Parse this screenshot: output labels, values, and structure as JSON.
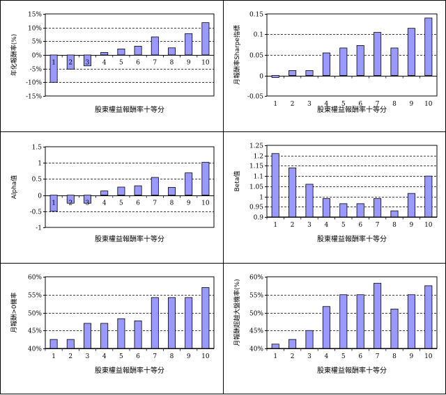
{
  "chart_data": [
    {
      "type": "bar",
      "categories": [
        "1",
        "2",
        "3",
        "4",
        "5",
        "6",
        "7",
        "8",
        "9",
        "10"
      ],
      "values": [
        -10.0,
        -5.2,
        -4.0,
        0.9,
        2.2,
        3.2,
        6.6,
        2.6,
        7.8,
        11.8
      ],
      "ylim": [
        -15,
        15
      ],
      "yticks": [
        "-15%",
        "-10%",
        "-5%",
        "0%",
        "5%",
        "10%",
        "15%"
      ],
      "yticks_values": [
        -15,
        -10,
        -5,
        0,
        5,
        10,
        15
      ],
      "xlabel": "股東權益報酬率十等分",
      "ylabel": "年化報酬率(%)",
      "grid": "dashed",
      "bar_color": "#9999ff"
    },
    {
      "type": "bar",
      "categories": [
        "1",
        "2",
        "3",
        "4",
        "5",
        "6",
        "7",
        "8",
        "9",
        "10"
      ],
      "values": [
        -0.005,
        0.012,
        0.012,
        0.055,
        0.067,
        0.073,
        0.105,
        0.067,
        0.115,
        0.14
      ],
      "ylim": [
        -0.05,
        0.15
      ],
      "yticks": [
        "-0.05",
        "0",
        "0.05",
        "0.1",
        "0.15"
      ],
      "yticks_values": [
        -0.05,
        0,
        0.05,
        0.1,
        0.15
      ],
      "xlabel": "股東權益報酬率十等分",
      "ylabel": "月報酬率Sharpe指標",
      "grid": "dashed",
      "bar_color": "#9999ff"
    },
    {
      "type": "bar",
      "categories": [
        "1",
        "2",
        "3",
        "4",
        "5",
        "6",
        "7",
        "8",
        "9",
        "10"
      ],
      "values": [
        -0.5,
        -0.25,
        -0.25,
        0.13,
        0.25,
        0.29,
        0.55,
        0.24,
        0.69,
        1.02
      ],
      "ylim": [
        -1,
        1.5
      ],
      "yticks": [
        "-1",
        "-0.5",
        "0",
        "0.5",
        "1",
        "1.5"
      ],
      "yticks_values": [
        -1,
        -0.5,
        0,
        0.5,
        1,
        1.5
      ],
      "xlabel": "股東權益報酬率十等分",
      "ylabel": "Alpha值",
      "grid": "dashed",
      "bar_color": "#9999ff"
    },
    {
      "type": "bar",
      "categories": [
        "1",
        "2",
        "3",
        "4",
        "5",
        "6",
        "7",
        "8",
        "9",
        "10"
      ],
      "values": [
        1.21,
        1.14,
        1.06,
        0.99,
        0.965,
        0.965,
        0.99,
        0.93,
        1.015,
        1.1
      ],
      "ylim": [
        0.9,
        1.25
      ],
      "yticks": [
        "0.9",
        "0.95",
        "1",
        "1.05",
        "1.1",
        "1.15",
        "1.2",
        "1.25"
      ],
      "yticks_values": [
        0.9,
        0.95,
        1,
        1.05,
        1.1,
        1.15,
        1.2,
        1.25
      ],
      "xlabel": "股東權益報酬率十等分",
      "ylabel": "Beta值",
      "grid": "dashed",
      "bar_color": "#9999ff"
    },
    {
      "type": "bar",
      "categories": [
        "1",
        "2",
        "3",
        "4",
        "5",
        "6",
        "7",
        "8",
        "9",
        "10"
      ],
      "values": [
        42.5,
        42.5,
        47.0,
        47.0,
        48.3,
        47.7,
        54.2,
        54.2,
        54.2,
        57.0
      ],
      "ylim": [
        40,
        60
      ],
      "yticks": [
        "40%",
        "45%",
        "50%",
        "55%",
        "60%"
      ],
      "yticks_values": [
        40,
        45,
        50,
        55,
        60
      ],
      "xlabel": "股東權益報酬率十等分",
      "ylabel": "月報酬>0機率",
      "grid": "dashed",
      "bar_color": "#9999ff"
    },
    {
      "type": "bar",
      "categories": [
        "1",
        "2",
        "3",
        "4",
        "5",
        "6",
        "7",
        "8",
        "9",
        "10"
      ],
      "values": [
        41.2,
        42.5,
        45.0,
        51.7,
        55.0,
        55.0,
        58.2,
        51.0,
        55.0,
        57.5
      ],
      "ylim": [
        40,
        60
      ],
      "yticks": [
        "40%",
        "45%",
        "50%",
        "55%",
        "60%"
      ],
      "yticks_values": [
        40,
        45,
        50,
        55,
        60
      ],
      "xlabel": "股東權益報酬率十等分",
      "ylabel": "月報酬超越大盤機率(%)",
      "grid": "dashed",
      "bar_color": "#9999ff"
    }
  ]
}
